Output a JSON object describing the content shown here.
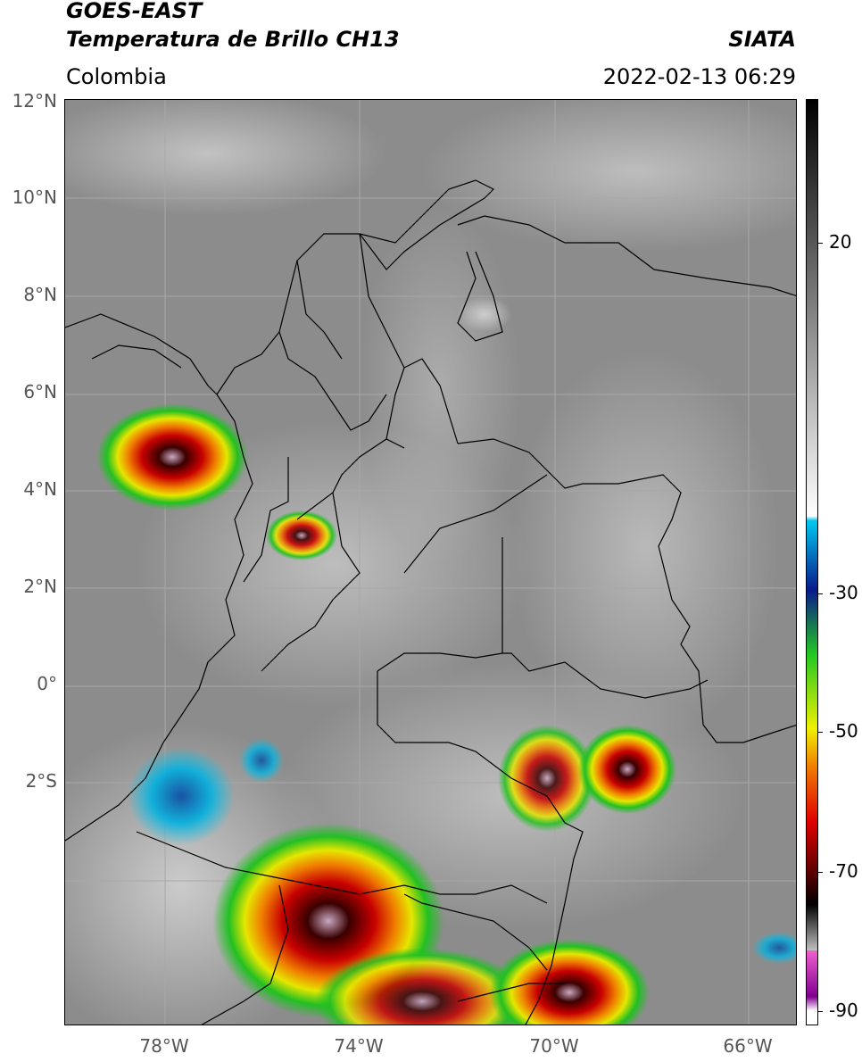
{
  "header": {
    "satellite": "GOES-EAST",
    "product": "Temperatura de Brillo CH13",
    "organization": "SIATA",
    "region": "Colombia",
    "datetime": "2022-02-13 06:29"
  },
  "map": {
    "lat_labels": [
      "12°N",
      "10°N",
      "8°N",
      "6°N",
      "4°N",
      "2°N",
      "0°",
      "2°S"
    ],
    "lon_labels": [
      "78°W",
      "74°W",
      "70°W",
      "66°W"
    ],
    "colors": {
      "land_gray": "#8a8a8a",
      "cloud_gray": "#c8c8c8",
      "border": "#000000",
      "gridline": "#b0b0b0"
    }
  },
  "colorbar": {
    "tick_labels": [
      "20",
      "-30",
      "-50",
      "-70",
      "-90"
    ],
    "stops": [
      {
        "color": "#000000"
      },
      {
        "color": "#ffffff"
      },
      {
        "color": "#00c8f0"
      },
      {
        "color": "#0a1a8c"
      },
      {
        "color": "#22c822"
      },
      {
        "color": "#f0f000"
      },
      {
        "color": "#f08000"
      },
      {
        "color": "#e00000"
      },
      {
        "color": "#500000"
      },
      {
        "color": "#000000"
      },
      {
        "color": "#c0c0c0"
      },
      {
        "color": "#f060d0"
      },
      {
        "color": "#800090"
      },
      {
        "color": "#ffffff"
      }
    ]
  }
}
